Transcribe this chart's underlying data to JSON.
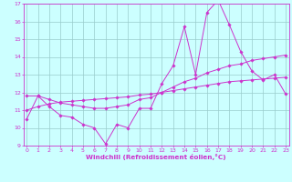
{
  "xlabel": "Windchill (Refroidissement éolien,°C)",
  "x": [
    0,
    1,
    2,
    3,
    4,
    5,
    6,
    7,
    8,
    9,
    10,
    11,
    12,
    13,
    14,
    15,
    16,
    17,
    18,
    19,
    20,
    21,
    22,
    23
  ],
  "line1": [
    10.5,
    11.8,
    11.2,
    10.7,
    10.6,
    10.2,
    10.0,
    9.1,
    10.2,
    10.0,
    11.1,
    11.1,
    12.5,
    13.5,
    15.7,
    13.0,
    16.5,
    17.2,
    15.8,
    14.3,
    13.2,
    12.7,
    13.0,
    11.9
  ],
  "line2": [
    11.8,
    11.8,
    11.6,
    11.4,
    11.3,
    11.2,
    11.1,
    11.1,
    11.2,
    11.3,
    11.6,
    11.7,
    12.0,
    12.3,
    12.6,
    12.8,
    13.1,
    13.3,
    13.5,
    13.6,
    13.8,
    13.9,
    14.0,
    14.1
  ],
  "line3": [
    11.0,
    11.2,
    11.35,
    11.45,
    11.5,
    11.55,
    11.6,
    11.65,
    11.7,
    11.75,
    11.85,
    11.9,
    12.0,
    12.1,
    12.2,
    12.3,
    12.4,
    12.5,
    12.6,
    12.65,
    12.7,
    12.75,
    12.8,
    12.85
  ],
  "bg_color": "#ccffff",
  "grid_color": "#99cccc",
  "ylim": [
    9,
    17
  ],
  "xlim": [
    -0.3,
    23.3
  ],
  "yticks": [
    9,
    10,
    11,
    12,
    13,
    14,
    15,
    16,
    17
  ],
  "xticks": [
    0,
    1,
    2,
    3,
    4,
    5,
    6,
    7,
    8,
    9,
    10,
    11,
    12,
    13,
    14,
    15,
    16,
    17,
    18,
    19,
    20,
    21,
    22,
    23
  ],
  "line_color": "#cc33cc",
  "marker": "D",
  "markersize": 1.8,
  "linewidth": 0.7,
  "tick_fontsize": 4.5,
  "xlabel_fontsize": 5.2
}
